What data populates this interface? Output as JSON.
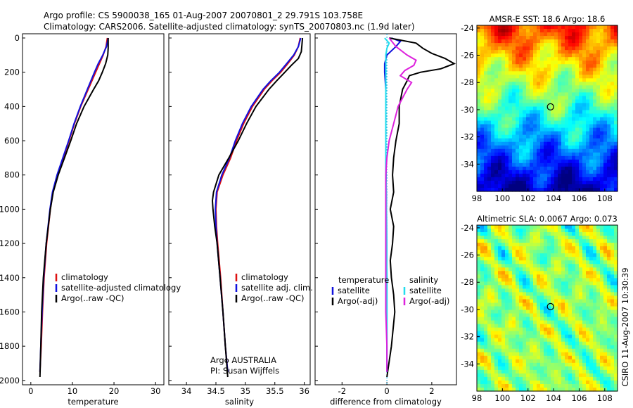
{
  "header": {
    "line1": "Argo profile: CS 5900038_165 01-Aug-2007 20070801_2 29.791S 103.758E",
    "line2": "Climatology: CARS2006. Satellite-adjusted climatology: synTS_20070803.nc (1.9d later)"
  },
  "colors": {
    "climatology": "#dd1111",
    "satellite": "#1111dd",
    "argo": "#000000",
    "sat_salinity": "#22ddee",
    "argo_salinity": "#dd22dd"
  },
  "chart_data": [
    {
      "type": "line",
      "xlabel": "temperature",
      "ylabel": "",
      "xlim": [
        -2,
        32
      ],
      "ylim": [
        2050,
        0
      ],
      "xticks": [
        "0",
        "10",
        "20",
        "30"
      ],
      "yticks": [
        "0",
        "200",
        "400",
        "600",
        "800",
        "1000",
        "1200",
        "1400",
        "1600",
        "1800",
        "2000"
      ],
      "legend": [
        "climatology",
        "satellite-adjusted climatology",
        "Argo(..raw -QC)"
      ],
      "series": [
        {
          "name": "climatology",
          "color": "#dd1111",
          "depth": [
            0,
            50,
            100,
            150,
            200,
            300,
            400,
            500,
            600,
            700,
            800,
            900,
            1000,
            1200,
            1400,
            1600,
            1800,
            1950
          ],
          "values": [
            18.4,
            18.1,
            17.4,
            16.5,
            15.6,
            13.8,
            12.0,
            10.5,
            9.2,
            7.8,
            6.4,
            5.3,
            4.7,
            3.8,
            3.2,
            2.8,
            2.5,
            2.2
          ]
        },
        {
          "name": "satellite-adjusted climatology",
          "color": "#1111dd",
          "depth": [
            0,
            50,
            100,
            150,
            200,
            300,
            400,
            500,
            600,
            700,
            800,
            900,
            1000,
            1200,
            1400,
            1600,
            1800,
            1950
          ],
          "values": [
            18.6,
            18.2,
            17.3,
            16.2,
            15.3,
            13.6,
            11.9,
            10.4,
            9.1,
            7.7,
            6.3,
            5.2,
            4.6,
            3.7,
            3.1,
            2.7,
            2.4,
            2.2
          ]
        },
        {
          "name": "Argo(..raw -QC)",
          "color": "#000000",
          "depth": [
            0,
            60,
            100,
            150,
            200,
            250,
            300,
            400,
            500,
            600,
            700,
            800,
            900,
            1000,
            1200,
            1400,
            1600,
            1800,
            1980
          ],
          "values": [
            18.6,
            18.6,
            18.5,
            18.0,
            17.2,
            16.3,
            15.1,
            12.8,
            11.0,
            9.6,
            8.1,
            6.6,
            5.4,
            4.7,
            3.7,
            3.0,
            2.6,
            2.4,
            2.2
          ]
        }
      ]
    },
    {
      "type": "line",
      "xlabel": "salinity",
      "ylabel": "",
      "xlim": [
        33.7,
        36.1
      ],
      "ylim": [
        2050,
        0
      ],
      "xticks": [
        "34",
        "34.5",
        "35",
        "35.5",
        "36"
      ],
      "legend": [
        "climatology",
        "satellite adj. clim.",
        "Argo(..raw -QC)"
      ],
      "annotation": [
        "Argo AUSTRALIA",
        "PI: Susan Wijffels"
      ],
      "series": [
        {
          "name": "climatology",
          "color": "#dd1111",
          "depth": [
            0,
            50,
            100,
            150,
            200,
            250,
            300,
            400,
            500,
            600,
            700,
            800,
            900,
            1000,
            1100,
            1200,
            1400,
            1600,
            1800,
            1950
          ],
          "values": [
            35.93,
            35.9,
            35.83,
            35.72,
            35.6,
            35.45,
            35.32,
            35.12,
            34.97,
            34.85,
            34.75,
            34.62,
            34.52,
            34.5,
            34.51,
            34.53,
            34.58,
            34.62,
            34.66,
            34.7
          ]
        },
        {
          "name": "satellite adj. clim.",
          "color": "#1111dd",
          "depth": [
            0,
            50,
            100,
            150,
            200,
            250,
            300,
            400,
            500,
            600,
            700,
            800,
            900,
            1000,
            1100,
            1200,
            1400,
            1600,
            1800,
            1950
          ],
          "values": [
            35.94,
            35.9,
            35.82,
            35.7,
            35.58,
            35.43,
            35.3,
            35.1,
            34.95,
            34.83,
            34.73,
            34.6,
            34.51,
            34.49,
            34.5,
            34.52,
            34.57,
            34.62,
            34.66,
            34.7
          ]
        },
        {
          "name": "Argo(..raw -QC)",
          "color": "#000000",
          "depth": [
            0,
            40,
            80,
            120,
            160,
            200,
            250,
            300,
            400,
            500,
            600,
            700,
            800,
            900,
            950,
            1000,
            1100,
            1200,
            1400,
            1600,
            1800,
            1980
          ],
          "values": [
            35.97,
            35.96,
            35.95,
            35.9,
            35.78,
            35.67,
            35.53,
            35.4,
            35.18,
            35.02,
            34.88,
            34.72,
            34.55,
            34.46,
            34.44,
            34.45,
            34.48,
            34.52,
            34.57,
            34.62,
            34.66,
            34.7
          ]
        }
      ]
    },
    {
      "type": "line",
      "xlabel": "difference from climatology",
      "ylabel": "",
      "xlim": [
        -3.2,
        3.1
      ],
      "ylim": [
        2050,
        0
      ],
      "xticks": [
        "-2",
        "0",
        "2"
      ],
      "legend": {
        "temperature": [
          "temperature",
          "satellite",
          "Argo(-adj)"
        ],
        "salinity": [
          "salinity",
          "satellite",
          "Argo(-adj)"
        ]
      },
      "series": [
        {
          "name": "temperature satellite",
          "color": "#1111dd",
          "depth": [
            0,
            20,
            50,
            100,
            150,
            200,
            300,
            500,
            700,
            1000,
            1400,
            1950
          ],
          "values": [
            0.2,
            0.6,
            0.4,
            0.0,
            -0.1,
            -0.1,
            -0.05,
            -0.05,
            -0.05,
            -0.02,
            0.0,
            0.0
          ]
        },
        {
          "name": "temperature Argo(-adj)",
          "color": "#000000",
          "depth": [
            0,
            30,
            60,
            90,
            120,
            150,
            180,
            200,
            220,
            250,
            300,
            400,
            500,
            600,
            700,
            800,
            900,
            1000,
            1100,
            1200,
            1300,
            1400,
            1500,
            1600,
            1800,
            1980
          ],
          "values": [
            0.1,
            1.3,
            1.6,
            2.0,
            2.6,
            3.0,
            2.4,
            1.5,
            1.0,
            0.9,
            0.7,
            0.55,
            0.55,
            0.4,
            0.3,
            0.25,
            0.3,
            0.15,
            0.3,
            0.25,
            0.15,
            0.2,
            0.3,
            0.35,
            0.2,
            0.0
          ]
        },
        {
          "name": "salinity satellite",
          "color": "#22ddee",
          "depth": [
            0,
            30,
            60,
            100,
            150,
            200,
            300,
            500,
            700,
            1000,
            1400,
            1950
          ],
          "values": [
            -0.1,
            0.1,
            0.0,
            -0.05,
            -0.05,
            -0.05,
            -0.05,
            -0.05,
            -0.05,
            -0.02,
            0.0,
            0.0
          ]
        },
        {
          "name": "salinity Argo(-adj)",
          "color": "#dd22dd",
          "depth": [
            0,
            50,
            100,
            130,
            160,
            190,
            220,
            260,
            300,
            350,
            400,
            450,
            500,
            600,
            700,
            800,
            1000,
            1200,
            1400,
            1600,
            1800,
            1950
          ],
          "values": [
            0.1,
            0.4,
            0.9,
            1.3,
            1.2,
            0.8,
            0.6,
            1.1,
            0.9,
            0.7,
            0.5,
            0.4,
            0.3,
            0.1,
            0.0,
            -0.05,
            -0.05,
            -0.05,
            -0.05,
            -0.05,
            0.0,
            0.0
          ]
        }
      ]
    },
    {
      "type": "heatmap",
      "title": "AMSR-E SST: 18.6 Argo: 18.6",
      "xlim": [
        98,
        109
      ],
      "ylim": [
        -36,
        -23.8
      ],
      "xticks": [
        "98",
        "100",
        "102",
        "104",
        "106",
        "108"
      ],
      "yticks": [
        "-24",
        "-26",
        "-28",
        "-30",
        "-32",
        "-34"
      ],
      "marker": {
        "lon": 103.758,
        "lat": -29.791
      },
      "colormap": "jet",
      "note": "SST field, warm (orange) in the north, cold (blue) in the south"
    },
    {
      "type": "heatmap",
      "title": "Altimetric SLA: 0.0067 Argo: 0.073",
      "xlim": [
        98,
        109
      ],
      "ylim": [
        -36,
        -23.8
      ],
      "xticks": [
        "98",
        "100",
        "102",
        "104",
        "106",
        "108"
      ],
      "yticks": [
        "-24",
        "-26",
        "-28",
        "-30",
        "-32",
        "-34"
      ],
      "marker": {
        "lon": 103.758,
        "lat": -29.791
      },
      "colormap": "jet",
      "side_label": "CSIRO 11-Aug-2007 10:30:39"
    }
  ]
}
